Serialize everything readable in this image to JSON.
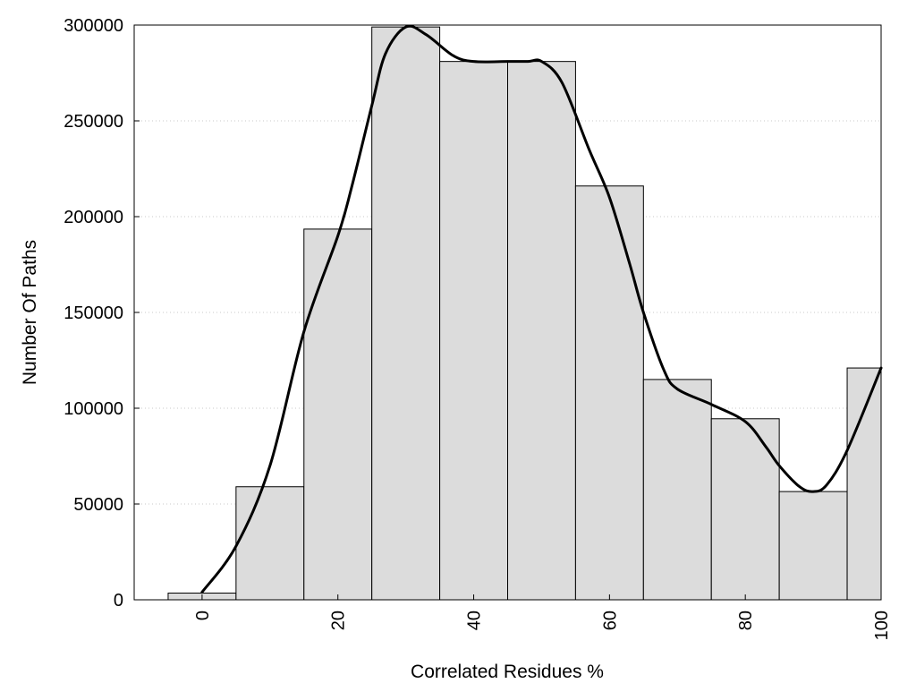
{
  "chart_data": {
    "type": "bar",
    "title": "",
    "xlabel": "Correlated Residues %",
    "ylabel": "Number Of Paths",
    "xlim": [
      -10,
      100
    ],
    "ylim": [
      0,
      300000
    ],
    "x_ticks": [
      0,
      20,
      40,
      60,
      80,
      100
    ],
    "y_ticks": [
      0,
      50000,
      100000,
      150000,
      200000,
      250000,
      300000
    ],
    "bin_width": 10,
    "bins": [
      {
        "center": 0,
        "value": 3500
      },
      {
        "center": 10,
        "value": 59000
      },
      {
        "center": 20,
        "value": 193500
      },
      {
        "center": 30,
        "value": 299000
      },
      {
        "center": 40,
        "value": 281000
      },
      {
        "center": 50,
        "value": 281000
      },
      {
        "center": 60,
        "value": 216000
      },
      {
        "center": 70,
        "value": 115000
      },
      {
        "center": 80,
        "value": 94500
      },
      {
        "center": 90,
        "value": 56500
      },
      {
        "center": 100,
        "value": 121000
      }
    ],
    "density_curve": {
      "x": [
        0,
        5,
        10,
        15,
        20,
        22,
        25,
        27,
        30,
        33,
        37,
        40,
        45,
        48,
        50,
        53,
        57,
        60,
        63,
        65,
        68,
        70,
        75,
        80,
        83,
        85,
        88,
        90,
        92,
        95,
        100
      ],
      "y": [
        4000,
        28000,
        70000,
        140000,
        190000,
        215000,
        258000,
        285000,
        299000,
        295000,
        284000,
        281000,
        281000,
        281000,
        281000,
        270000,
        235000,
        210000,
        175000,
        150000,
        120000,
        110000,
        102000,
        93000,
        80000,
        70000,
        59000,
        56500,
        60000,
        78000,
        121000
      ]
    },
    "grid": true,
    "legend": "none",
    "colors": {
      "bar_fill": "#dcdcdc",
      "bar_stroke": "#000000",
      "curve": "#000000",
      "grid": "#c8c8c8"
    }
  }
}
